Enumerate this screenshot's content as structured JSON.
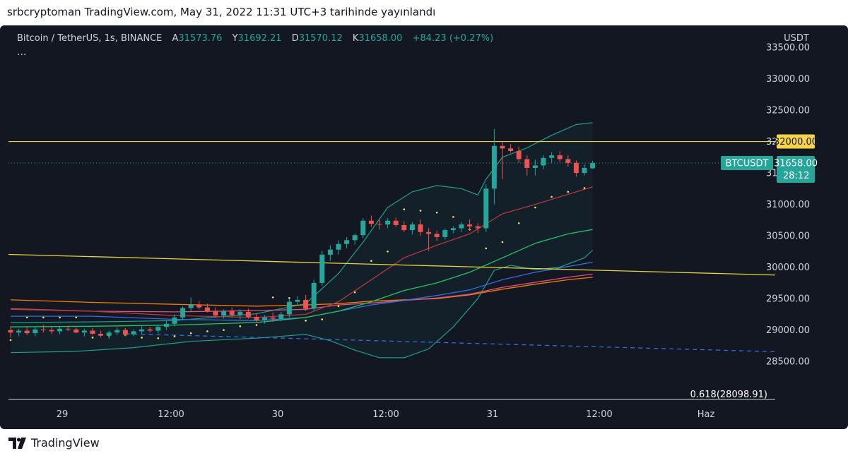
{
  "header": {
    "title": "srbcryptoman TradingView.com, May 31, 2022 11:31 UTC+3 tarihinde yayınlandı"
  },
  "legend": {
    "symbol": "Bitcoin / TetherUS, 1s, BINANCE",
    "open_label": "A",
    "open": "31573.76",
    "high_label": "Y",
    "high": "31692.21",
    "low_label": "D",
    "low": "31570.12",
    "close_label": "K",
    "close": "31658.00",
    "change": "+84.23 (+0.27%)",
    "more": "..."
  },
  "footer": {
    "brand": "TradingView"
  },
  "chart_data": {
    "type": "candlestick",
    "currency": "USDT",
    "ylim": [
      28300,
      33500
    ],
    "y_ticks": [
      "33500.00",
      "33000.00",
      "32500.00",
      "32000.00",
      "31500.00",
      "31000.00",
      "30500.00",
      "30000.00",
      "29500.00",
      "29000.00",
      "28500.00"
    ],
    "x_ticks": [
      "29",
      "12:00",
      "30",
      "12:00",
      "31",
      "12:00",
      "Haz"
    ],
    "price_label": {
      "symbol": "BTCUSDT",
      "price": "31658.00",
      "countdown": "28:12"
    },
    "horizontal_level": {
      "value": 32000,
      "label": "32000.00"
    },
    "fib_label": "0.618(28098.91)",
    "candles": [
      [
        29000,
        29060,
        28880,
        28960
      ],
      [
        28960,
        29020,
        28900,
        28990
      ],
      [
        28990,
        29050,
        28920,
        28950
      ],
      [
        28950,
        29040,
        28900,
        29010
      ],
      [
        29010,
        29080,
        28960,
        29000
      ],
      [
        29000,
        29050,
        28940,
        28980
      ],
      [
        28980,
        29060,
        28930,
        29020
      ],
      [
        29020,
        29070,
        28980,
        29010
      ],
      [
        29010,
        29040,
        28950,
        28960
      ],
      [
        28960,
        29020,
        28900,
        28990
      ],
      [
        28990,
        29030,
        28920,
        28940
      ],
      [
        28940,
        28990,
        28880,
        28910
      ],
      [
        28910,
        28990,
        28860,
        28960
      ],
      [
        28960,
        29040,
        28920,
        29000
      ],
      [
        29000,
        29030,
        28900,
        28930
      ],
      [
        28930,
        29010,
        28900,
        28980
      ],
      [
        28980,
        29060,
        28940,
        29010
      ],
      [
        29010,
        29050,
        28960,
        28990
      ],
      [
        28990,
        29080,
        28950,
        29050
      ],
      [
        29050,
        29140,
        29000,
        29100
      ],
      [
        29100,
        29250,
        29060,
        29200
      ],
      [
        29200,
        29380,
        29160,
        29350
      ],
      [
        29350,
        29520,
        29300,
        29400
      ],
      [
        29400,
        29460,
        29330,
        29360
      ],
      [
        29360,
        29420,
        29280,
        29300
      ],
      [
        29300,
        29360,
        29200,
        29230
      ],
      [
        29230,
        29330,
        29180,
        29300
      ],
      [
        29300,
        29360,
        29200,
        29240
      ],
      [
        29240,
        29330,
        29170,
        29290
      ],
      [
        29290,
        29340,
        29180,
        29210
      ],
      [
        29210,
        29260,
        29120,
        29160
      ],
      [
        29160,
        29240,
        29100,
        29200
      ],
      [
        29200,
        29280,
        29130,
        29180
      ],
      [
        29180,
        29290,
        29140,
        29250
      ],
      [
        29250,
        29500,
        29200,
        29450
      ],
      [
        29450,
        29540,
        29380,
        29480
      ],
      [
        29480,
        29560,
        29300,
        29340
      ],
      [
        29340,
        29800,
        29300,
        29750
      ],
      [
        29750,
        30260,
        29700,
        30200
      ],
      [
        30200,
        30350,
        30100,
        30280
      ],
      [
        30280,
        30430,
        30200,
        30370
      ],
      [
        30370,
        30480,
        30300,
        30430
      ],
      [
        30430,
        30540,
        30360,
        30510
      ],
      [
        30510,
        30780,
        30460,
        30740
      ],
      [
        30740,
        30820,
        30640,
        30690
      ],
      [
        30690,
        30760,
        30600,
        30680
      ],
      [
        30680,
        30780,
        30620,
        30740
      ],
      [
        30740,
        30790,
        30640,
        30670
      ],
      [
        30670,
        30730,
        30560,
        30590
      ],
      [
        30590,
        30720,
        30520,
        30680
      ],
      [
        30680,
        30760,
        30500,
        30560
      ],
      [
        30560,
        30620,
        30260,
        30530
      ],
      [
        30530,
        30580,
        30420,
        30480
      ],
      [
        30480,
        30620,
        30440,
        30590
      ],
      [
        30590,
        30650,
        30540,
        30620
      ],
      [
        30620,
        30720,
        30560,
        30680
      ],
      [
        30680,
        30760,
        30580,
        30650
      ],
      [
        30650,
        30700,
        30540,
        30620
      ],
      [
        30620,
        31320,
        30560,
        31250
      ],
      [
        31250,
        32200,
        31000,
        31930
      ],
      [
        31930,
        32000,
        31400,
        31890
      ],
      [
        31890,
        31960,
        31820,
        31850
      ],
      [
        31850,
        31920,
        31660,
        31720
      ],
      [
        31720,
        31780,
        31460,
        31580
      ],
      [
        31580,
        31710,
        31460,
        31620
      ],
      [
        31620,
        31780,
        31560,
        31740
      ],
      [
        31740,
        31830,
        31660,
        31780
      ],
      [
        31780,
        31850,
        31680,
        31720
      ],
      [
        31720,
        31780,
        31600,
        31660
      ],
      [
        31660,
        31700,
        31440,
        31500
      ],
      [
        31500,
        31640,
        31460,
        31580
      ],
      [
        31573.76,
        31692.21,
        31570.12,
        31658
      ]
    ],
    "indicators": {
      "bollinger_upper": [
        [
          0,
          29120
        ],
        [
          10,
          29130
        ],
        [
          20,
          29150
        ],
        [
          30,
          29260
        ],
        [
          36,
          29420
        ],
        [
          40,
          29900
        ],
        [
          43,
          30400
        ],
        [
          46,
          30950
        ],
        [
          49,
          31200
        ],
        [
          52,
          31300
        ],
        [
          55,
          31250
        ],
        [
          57,
          31150
        ],
        [
          58,
          31400
        ],
        [
          60,
          31750
        ],
        [
          63,
          31900
        ],
        [
          66,
          32100
        ],
        [
          69,
          32270
        ],
        [
          71,
          32300
        ]
      ],
      "bollinger_lower": [
        [
          0,
          28640
        ],
        [
          8,
          28660
        ],
        [
          15,
          28720
        ],
        [
          22,
          28820
        ],
        [
          30,
          28870
        ],
        [
          36,
          28930
        ],
        [
          39,
          28830
        ],
        [
          42,
          28680
        ],
        [
          45,
          28560
        ],
        [
          48,
          28560
        ],
        [
          51,
          28700
        ],
        [
          54,
          29050
        ],
        [
          57,
          29500
        ],
        [
          59,
          29950
        ],
        [
          61,
          30030
        ],
        [
          64,
          29960
        ],
        [
          67,
          30000
        ],
        [
          70,
          30150
        ],
        [
          71,
          30270
        ]
      ],
      "ema_red": [
        [
          0,
          29330
        ],
        [
          10,
          29300
        ],
        [
          20,
          29230
        ],
        [
          30,
          29200
        ],
        [
          36,
          29250
        ],
        [
          40,
          29450
        ],
        [
          44,
          29800
        ],
        [
          48,
          30150
        ],
        [
          52,
          30350
        ],
        [
          56,
          30530
        ],
        [
          60,
          30850
        ],
        [
          64,
          31000
        ],
        [
          68,
          31160
        ],
        [
          71,
          31280
        ]
      ],
      "ema_green": [
        [
          0,
          29050
        ],
        [
          10,
          29060
        ],
        [
          20,
          29080
        ],
        [
          30,
          29120
        ],
        [
          36,
          29200
        ],
        [
          40,
          29300
        ],
        [
          44,
          29450
        ],
        [
          48,
          29630
        ],
        [
          52,
          29750
        ],
        [
          56,
          29920
        ],
        [
          60,
          30150
        ],
        [
          64,
          30380
        ],
        [
          68,
          30530
        ],
        [
          71,
          30600
        ]
      ],
      "ema_blue": [
        [
          0,
          29220
        ],
        [
          10,
          29220
        ],
        [
          20,
          29170
        ],
        [
          30,
          29150
        ],
        [
          36,
          29200
        ],
        [
          40,
          29300
        ],
        [
          44,
          29400
        ],
        [
          48,
          29470
        ],
        [
          52,
          29550
        ],
        [
          56,
          29640
        ],
        [
          60,
          29800
        ],
        [
          64,
          29920
        ],
        [
          68,
          30010
        ],
        [
          71,
          30080
        ]
      ],
      "ema_orange": [
        [
          0,
          29480
        ],
        [
          10,
          29440
        ],
        [
          20,
          29410
        ],
        [
          30,
          29380
        ],
        [
          36,
          29400
        ],
        [
          40,
          29420
        ],
        [
          44,
          29460
        ],
        [
          48,
          29480
        ],
        [
          52,
          29500
        ],
        [
          56,
          29560
        ],
        [
          60,
          29650
        ],
        [
          64,
          29730
        ],
        [
          68,
          29800
        ],
        [
          71,
          29840
        ]
      ],
      "ema_pink": [
        [
          0,
          29340
        ],
        [
          10,
          29300
        ],
        [
          20,
          29290
        ],
        [
          30,
          29310
        ],
        [
          36,
          29330
        ],
        [
          40,
          29400
        ],
        [
          44,
          29430
        ],
        [
          48,
          29470
        ],
        [
          52,
          29510
        ],
        [
          56,
          29570
        ],
        [
          60,
          29680
        ],
        [
          64,
          29760
        ],
        [
          68,
          29840
        ],
        [
          71,
          29890
        ]
      ],
      "trend_yellow": [
        [
          -2,
          30210
        ],
        [
          92,
          29880
        ]
      ],
      "trend_blue_dashed": [
        [
          14,
          28940
        ],
        [
          92,
          28660
        ]
      ],
      "sar": [
        [
          0,
          28840
        ],
        [
          2,
          29200
        ],
        [
          4,
          29200
        ],
        [
          6,
          29200
        ],
        [
          8,
          29200
        ],
        [
          10,
          28880
        ],
        [
          12,
          28910
        ],
        [
          14,
          28920
        ],
        [
          16,
          28880
        ],
        [
          18,
          28870
        ],
        [
          20,
          28900
        ],
        [
          22,
          28950
        ],
        [
          24,
          28980
        ],
        [
          26,
          29000
        ],
        [
          28,
          29060
        ],
        [
          30,
          29080
        ],
        [
          32,
          29520
        ],
        [
          34,
          29510
        ],
        [
          36,
          29150
        ],
        [
          38,
          29170
        ],
        [
          40,
          29380
        ],
        [
          42,
          29600
        ],
        [
          44,
          30100
        ],
        [
          46,
          30250
        ],
        [
          48,
          30920
        ],
        [
          50,
          30900
        ],
        [
          52,
          30870
        ],
        [
          54,
          30800
        ],
        [
          56,
          30600
        ],
        [
          58,
          30300
        ],
        [
          60,
          30400
        ],
        [
          62,
          30700
        ],
        [
          64,
          30950
        ],
        [
          66,
          31120
        ],
        [
          68,
          31200
        ],
        [
          70,
          31260
        ]
      ]
    }
  }
}
